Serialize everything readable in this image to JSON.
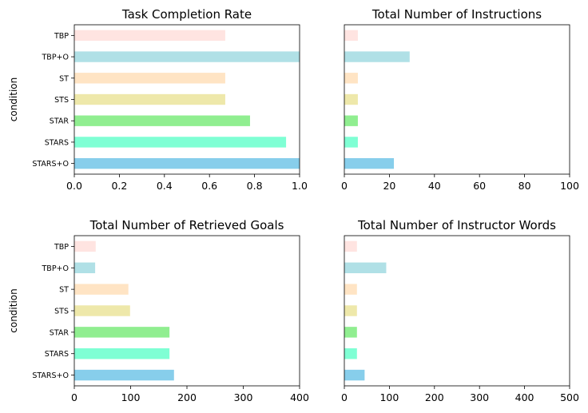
{
  "chart_data": [
    {
      "type": "bar",
      "orientation": "horizontal",
      "title": "Task Completion Rate",
      "ylabel": "condition",
      "xlabel": "",
      "categories": [
        "TBP",
        "TBP+O",
        "ST",
        "STS",
        "STAR",
        "STARS",
        "STARS+O"
      ],
      "values": [
        0.67,
        1.0,
        0.67,
        0.67,
        0.78,
        0.94,
        1.0
      ],
      "colors": [
        "#ffe4e1",
        "#b0e0e6",
        "#ffe4c4",
        "#eee8aa",
        "#90ee90",
        "#7fffd4",
        "#87ceeb"
      ],
      "xlim": [
        0,
        1.0
      ],
      "xticks": [
        "0.0",
        "0.2",
        "0.4",
        "0.6",
        "0.8",
        "1.0"
      ],
      "xtick_values": [
        0,
        0.2,
        0.4,
        0.6,
        0.8,
        1.0
      ],
      "show_category_labels": true,
      "grid": false
    },
    {
      "type": "bar",
      "orientation": "horizontal",
      "title": "Total Number of Instructions",
      "ylabel": "",
      "xlabel": "",
      "categories": [
        "TBP",
        "TBP+O",
        "ST",
        "STS",
        "STAR",
        "STARS",
        "STARS+O"
      ],
      "values": [
        6,
        29,
        6,
        6,
        6,
        6,
        22
      ],
      "colors": [
        "#ffe4e1",
        "#b0e0e6",
        "#ffe4c4",
        "#eee8aa",
        "#90ee90",
        "#7fffd4",
        "#87ceeb"
      ],
      "xlim": [
        0,
        100
      ],
      "xticks": [
        "0",
        "20",
        "40",
        "60",
        "80",
        "100"
      ],
      "xtick_values": [
        0,
        20,
        40,
        60,
        80,
        100
      ],
      "show_category_labels": false,
      "grid": false
    },
    {
      "type": "bar",
      "orientation": "horizontal",
      "title": "Total Number of Retrieved Goals",
      "ylabel": "condition",
      "xlabel": "",
      "categories": [
        "TBP",
        "TBP+O",
        "ST",
        "STS",
        "STAR",
        "STARS",
        "STARS+O"
      ],
      "values": [
        38,
        37,
        96,
        99,
        169,
        169,
        177
      ],
      "colors": [
        "#ffe4e1",
        "#b0e0e6",
        "#ffe4c4",
        "#eee8aa",
        "#90ee90",
        "#7fffd4",
        "#87ceeb"
      ],
      "xlim": [
        0,
        400
      ],
      "xticks": [
        "0",
        "100",
        "200",
        "300",
        "400"
      ],
      "xtick_values": [
        0,
        100,
        200,
        300,
        400
      ],
      "show_category_labels": true,
      "grid": false
    },
    {
      "type": "bar",
      "orientation": "horizontal",
      "title": "Total Number of Instructor Words",
      "ylabel": "",
      "xlabel": "",
      "categories": [
        "TBP",
        "TBP+O",
        "ST",
        "STS",
        "STAR",
        "STARS",
        "STARS+O"
      ],
      "values": [
        28,
        93,
        28,
        28,
        28,
        28,
        45
      ],
      "colors": [
        "#ffe4e1",
        "#b0e0e6",
        "#ffe4c4",
        "#eee8aa",
        "#90ee90",
        "#7fffd4",
        "#87ceeb"
      ],
      "xlim": [
        0,
        500
      ],
      "xticks": [
        "0",
        "100",
        "200",
        "300",
        "400",
        "500"
      ],
      "xtick_values": [
        0,
        100,
        200,
        300,
        400,
        500
      ],
      "show_category_labels": false,
      "grid": false
    }
  ]
}
